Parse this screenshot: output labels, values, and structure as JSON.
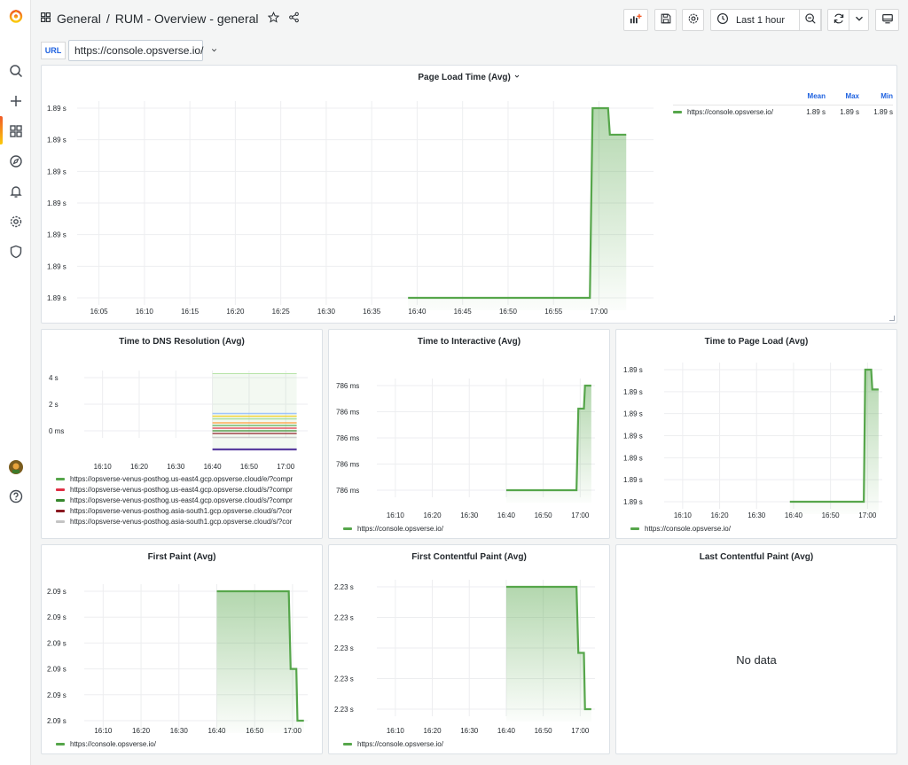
{
  "breadcrumb": {
    "folder": "General",
    "separator": "/",
    "dashboard": "RUM - Overview - general"
  },
  "toolbar": {
    "time_range": "Last 1 hour"
  },
  "variable": {
    "label": "URL",
    "value": "https://console.opsverse.io/"
  },
  "colors": {
    "accent": "#1f62e0",
    "series_green": "#56a64b"
  },
  "icons": {
    "sidebar": [
      "grafana-logo",
      "search-icon",
      "plus-icon",
      "dashboards-icon",
      "explore-icon",
      "alert-bell-icon",
      "gear-icon",
      "shield-icon",
      "avatar",
      "help-icon"
    ],
    "toolbar": [
      "add-panel-icon",
      "save-icon",
      "gear-icon",
      "clock-icon",
      "zoom-out-icon",
      "refresh-icon",
      "chevron-down-icon",
      "tv-mode-icon"
    ]
  },
  "panels": {
    "page_load": {
      "title": "Page Load Time (Avg)",
      "legend_headers": [
        "Mean",
        "Max",
        "Min"
      ],
      "legend_rows": [
        {
          "name": "https://console.opsverse.io/",
          "mean": "1.89 s",
          "max": "1.89 s",
          "min": "1.89 s"
        }
      ]
    },
    "dns": {
      "title": "Time to DNS Resolution (Avg)",
      "legend": [
        {
          "name": "https://opsverse-venus-posthog.us-east4.gcp.opsverse.cloud/e/?compr",
          "color": "#56a64b"
        },
        {
          "name": "https://opsverse-venus-posthog.us-east4.gcp.opsverse.cloud/s/?compr",
          "color": "#e02f44"
        },
        {
          "name": "https://opsverse-venus-posthog.us-east4.gcp.opsverse.cloud/s/?compr",
          "color": "#37872d"
        },
        {
          "name": "https://opsverse-venus-posthog.asia-south1.gcp.opsverse.cloud/s/?cor",
          "color": "#8a1820"
        },
        {
          "name": "https://opsverse-venus-posthog.asia-south1.gcp.opsverse.cloud/s/?cor",
          "color": "#c4c4c4"
        }
      ]
    },
    "tti": {
      "title": "Time to Interactive (Avg)",
      "legend": "https://console.opsverse.io/"
    },
    "tpl": {
      "title": "Time to Page Load (Avg)",
      "legend": "https://console.opsverse.io/"
    },
    "fp": {
      "title": "First Paint (Avg)",
      "legend": "https://console.opsverse.io/"
    },
    "fcp": {
      "title": "First Contentful Paint (Avg)",
      "legend": "https://console.opsverse.io/"
    },
    "lcp": {
      "title": "Last Contentful Paint (Avg)",
      "nodata": "No data"
    }
  },
  "chart_data": [
    {
      "panel": "page_load",
      "type": "line",
      "title": "Page Load Time (Avg)",
      "x_ticks": [
        "16:05",
        "16:10",
        "16:15",
        "16:20",
        "16:25",
        "16:30",
        "16:35",
        "16:40",
        "16:45",
        "16:50",
        "16:55",
        "17:00"
      ],
      "y_ticks": [
        "1.89 s",
        "1.89 s",
        "1.89 s",
        "1.89 s",
        "1.89 s",
        "1.89 s",
        "1.89 s"
      ],
      "series": [
        {
          "name": "https://console.opsverse.io/",
          "x": [
            "16:39",
            "16:59",
            "16:59.3",
            "17:01",
            "17:01.2",
            "17:03"
          ],
          "y": [
            0,
            0,
            1,
            1,
            0.86,
            0.86
          ]
        }
      ]
    },
    {
      "panel": "dns",
      "type": "line",
      "title": "Time to DNS Resolution (Avg)",
      "x_ticks": [
        "16:10",
        "16:20",
        "16:30",
        "16:40",
        "16:50",
        "17:00"
      ],
      "y_ticks": [
        "4 s",
        "2 s",
        "0 ms"
      ],
      "ylim": [
        -1.5,
        4.5
      ]
    },
    {
      "panel": "tti",
      "type": "line",
      "title": "Time to Interactive (Avg)",
      "x_ticks": [
        "16:10",
        "16:20",
        "16:30",
        "16:40",
        "16:50",
        "17:00"
      ],
      "y_ticks": [
        "786 ms",
        "786 ms",
        "786 ms",
        "786 ms",
        "786 ms"
      ],
      "series": [
        {
          "name": "https://console.opsverse.io/",
          "x": [
            "16:40",
            "16:59",
            "16:59.5",
            "17:01",
            "17:01.3",
            "17:03"
          ],
          "y": [
            0,
            0,
            0.78,
            0.78,
            1,
            1
          ]
        }
      ]
    },
    {
      "panel": "tpl",
      "type": "line",
      "title": "Time to Page Load (Avg)",
      "x_ticks": [
        "16:10",
        "16:20",
        "16:30",
        "16:40",
        "16:50",
        "17:00"
      ],
      "y_ticks": [
        "1.89 s",
        "1.89 s",
        "1.89 s",
        "1.89 s",
        "1.89 s",
        "1.89 s",
        "1.89 s"
      ],
      "series": [
        {
          "name": "https://console.opsverse.io/",
          "x": [
            "16:39",
            "16:59",
            "16:59.4",
            "17:01",
            "17:01.3",
            "17:03"
          ],
          "y": [
            0,
            0,
            1,
            1,
            0.85,
            0.85
          ]
        }
      ]
    },
    {
      "panel": "fp",
      "type": "line",
      "title": "First Paint (Avg)",
      "x_ticks": [
        "16:10",
        "16:20",
        "16:30",
        "16:40",
        "16:50",
        "17:00"
      ],
      "y_ticks": [
        "2.09 s",
        "2.09 s",
        "2.09 s",
        "2.09 s",
        "2.09 s",
        "2.09 s"
      ],
      "series": [
        {
          "name": "https://console.opsverse.io/",
          "x": [
            "16:40",
            "16:59",
            "16:59.5",
            "17:01",
            "17:01.3",
            "17:03"
          ],
          "y": [
            1,
            1,
            0.4,
            0.4,
            0,
            0
          ]
        }
      ]
    },
    {
      "panel": "fcp",
      "type": "line",
      "title": "First Contentful Paint (Avg)",
      "x_ticks": [
        "16:10",
        "16:20",
        "16:30",
        "16:40",
        "16:50",
        "17:00"
      ],
      "y_ticks": [
        "2.23 s",
        "2.23 s",
        "2.23 s",
        "2.23 s",
        "2.23 s"
      ],
      "series": [
        {
          "name": "https://console.opsverse.io/",
          "x": [
            "16:40",
            "16:59",
            "16:59.5",
            "17:01",
            "17:01.3",
            "17:03"
          ],
          "y": [
            1,
            1,
            0.46,
            0.46,
            0,
            0
          ]
        }
      ]
    }
  ]
}
